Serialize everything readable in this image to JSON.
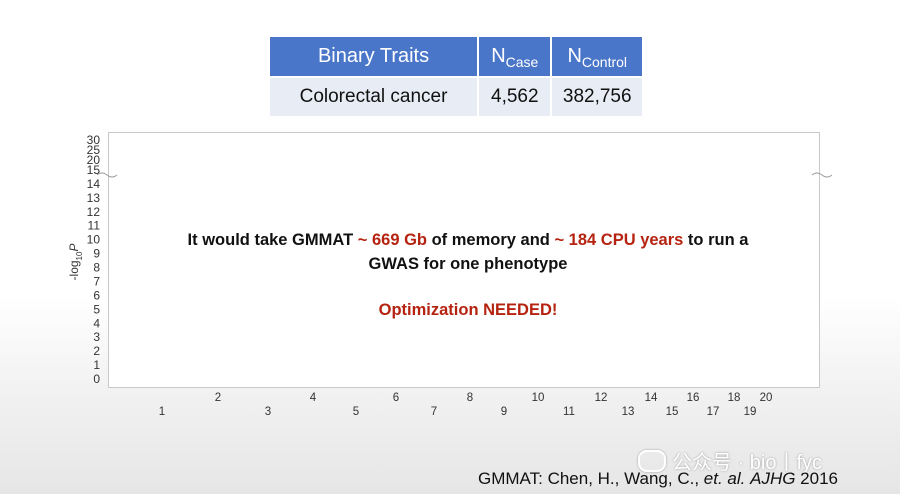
{
  "table": {
    "headers": [
      "Binary Traits",
      "N",
      "Case",
      "N",
      "Control"
    ],
    "row": {
      "trait": "Colorectal cancer",
      "n_case": "4,562",
      "n_control": "382,756"
    }
  },
  "message": {
    "line1_pre": "It would take GMMAT ",
    "line1_mem": "~ 669 Gb",
    "line1_mid": " of memory and  ",
    "line1_cpu": "~ 184 CPU years",
    "line1_post": " to run a",
    "line2": "GWAS for one phenotype",
    "line3": "Optimization NEEDED!"
  },
  "citation": {
    "pre": "GMMAT: Chen, H., Wang, C., ",
    "etal": "et. al.",
    "journal": "AJHG",
    "year": " 2016"
  },
  "watermark": "公众号 · bio丨fyc",
  "colors": {
    "header_bg": "#4a76c9",
    "row_bg": "#e8ecf4",
    "accent_red": "#b52310"
  },
  "chart_data": {
    "type": "scatter",
    "title": "",
    "xlabel": "",
    "ylabel": "-log10P",
    "ylabel_parts": [
      "-log",
      "10",
      "P"
    ],
    "y_ticks": [
      0,
      1,
      2,
      3,
      4,
      5,
      6,
      7,
      8,
      9,
      10,
      11,
      12,
      13,
      14,
      15,
      20,
      25,
      30
    ],
    "y_break_after": 15,
    "x_ticks": [
      "1",
      "2",
      "3",
      "4",
      "5",
      "6",
      "7",
      "8",
      "9",
      "10",
      "11",
      "12",
      "13",
      "14",
      "15",
      "16",
      "17",
      "18",
      "19",
      "20"
    ],
    "series": []
  }
}
